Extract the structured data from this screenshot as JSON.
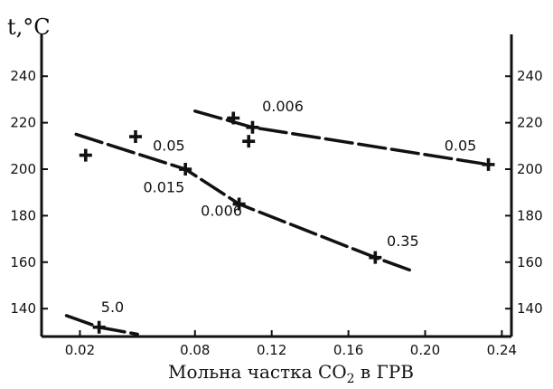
{
  "chart_data": {
    "type": "line",
    "ylabel": "t,°C",
    "xlabel_parts": [
      "Мольна частка CO",
      "2",
      " в ГРВ"
    ],
    "x_ticks": [
      "0.02",
      "0.08",
      "0.12",
      "0.16",
      "0.20",
      "0.24"
    ],
    "x_tick_values": [
      0.02,
      0.08,
      0.12,
      0.16,
      0.2,
      0.24
    ],
    "y_ticks": [
      140,
      160,
      180,
      200,
      220,
      240
    ],
    "xlim": [
      0.0,
      0.245
    ],
    "ylim": [
      128,
      258
    ],
    "right_axis": true,
    "grid": false,
    "series": [
      {
        "x": [
          0.013,
          0.03,
          0.05
        ],
        "y": [
          137,
          132,
          129
        ]
      },
      {
        "x": [
          0.018,
          0.075,
          0.103,
          0.174,
          0.194
        ],
        "y": [
          215,
          200,
          185,
          162,
          156
        ]
      },
      {
        "x": [
          0.08,
          0.11,
          0.233
        ],
        "y": [
          225,
          218,
          202
        ]
      }
    ],
    "markers": [
      {
        "x": 0.03,
        "y": 132
      },
      {
        "x": 0.023,
        "y": 206
      },
      {
        "x": 0.049,
        "y": 214
      },
      {
        "x": 0.075,
        "y": 200
      },
      {
        "x": 0.103,
        "y": 185
      },
      {
        "x": 0.174,
        "y": 162
      },
      {
        "x": 0.1,
        "y": 222
      },
      {
        "x": 0.11,
        "y": 218
      },
      {
        "x": 0.108,
        "y": 212
      },
      {
        "x": 0.233,
        "y": 202
      }
    ],
    "annotations": [
      {
        "text": "5.0",
        "x": 0.031,
        "y": 138.5
      },
      {
        "text": "0.05",
        "x": 0.058,
        "y": 208
      },
      {
        "text": "0.015",
        "x": 0.053,
        "y": 190
      },
      {
        "text": "0.006",
        "x": 0.083,
        "y": 180
      },
      {
        "text": "0.35",
        "x": 0.18,
        "y": 167
      },
      {
        "text": "0.006",
        "x": 0.115,
        "y": 225
      },
      {
        "text": "0.05",
        "x": 0.21,
        "y": 208
      }
    ]
  }
}
